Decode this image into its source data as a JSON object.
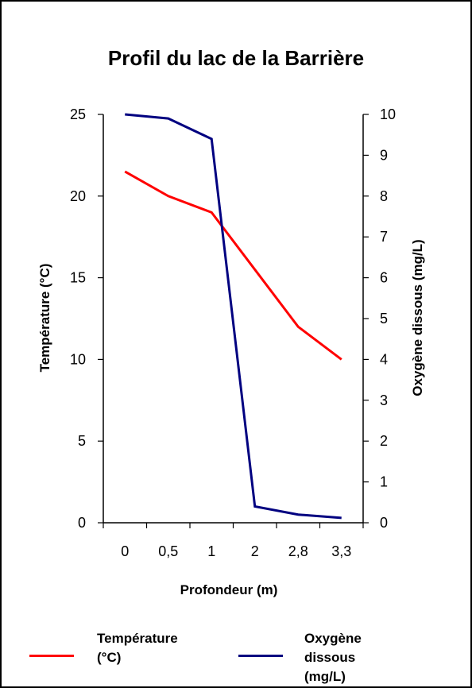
{
  "chart_data": {
    "type": "line",
    "title": "Profil du lac de la Barrière",
    "xlabel": "Profondeur (m)",
    "ylabel_left": "Température (°C)",
    "ylabel_right": "Oxygène dissous (mg/L)",
    "categories": [
      "0",
      "0,5",
      "1",
      "2",
      "2,8",
      "3,3"
    ],
    "y_left": {
      "min": 0,
      "max": 25,
      "ticks": [
        "0",
        "5",
        "10",
        "15",
        "20",
        "25"
      ]
    },
    "y_right": {
      "min": 0,
      "max": 10,
      "ticks": [
        "0",
        "1",
        "2",
        "3",
        "4",
        "5",
        "6",
        "7",
        "8",
        "9",
        "10"
      ]
    },
    "grid": false,
    "legend_position": "bottom",
    "series": [
      {
        "name": "Température (°C)",
        "axis": "left",
        "color": "#ff0000",
        "values": [
          21.5,
          20.0,
          19.0,
          15.5,
          12.0,
          10.0
        ]
      },
      {
        "name": "Oxygène dissous (mg/L)",
        "axis": "right",
        "color": "#000080",
        "values": [
          10.0,
          9.9,
          9.4,
          0.4,
          0.2,
          0.12
        ]
      }
    ]
  },
  "legend": {
    "items": [
      {
        "label_line1": "Température",
        "label_line2": "(°C)",
        "color": "#ff0000"
      },
      {
        "label_line1": "Oxygène dissous",
        "label_line2": "(mg/L)",
        "color": "#000080"
      }
    ]
  }
}
